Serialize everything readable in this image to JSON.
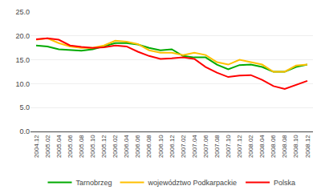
{
  "chart_data": {
    "type": "line",
    "categories": [
      "2004.12",
      "2005.02",
      "2005.04",
      "2005.06",
      "2005.08",
      "2005.10",
      "2005.12",
      "2006.02",
      "2006.04",
      "2006.06",
      "2006.08",
      "2006.10",
      "2006.12",
      "2007.02",
      "2007.04",
      "2007.06",
      "2007.08",
      "2007.10",
      "2007.12",
      "2008.02",
      "2008.04",
      "2008.06",
      "2008.08",
      "2008.10",
      "2008.12"
    ],
    "series": [
      {
        "name": "Tarnobrzeg",
        "color": "#00AA00",
        "values": [
          18.0,
          17.8,
          17.2,
          17.0,
          16.9,
          17.2,
          17.8,
          18.5,
          18.5,
          18.2,
          17.5,
          17.0,
          17.2,
          15.8,
          15.5,
          15.5,
          14.0,
          13.0,
          13.9,
          14.0,
          13.5,
          12.5,
          12.5,
          13.5,
          14.0
        ]
      },
      {
        "name": "województwo Podkarpackie",
        "color": "#FFC000",
        "values": [
          19.2,
          19.5,
          18.5,
          17.8,
          17.5,
          17.5,
          18.0,
          19.0,
          18.8,
          18.3,
          17.0,
          16.5,
          16.5,
          16.0,
          16.5,
          16.0,
          14.5,
          14.0,
          15.0,
          14.5,
          14.0,
          12.5,
          12.5,
          13.8,
          14.0
        ]
      },
      {
        "name": "Polska",
        "color": "#FF0000",
        "values": [
          19.3,
          19.5,
          19.2,
          18.0,
          17.7,
          17.5,
          17.6,
          18.0,
          17.8,
          16.7,
          15.8,
          15.2,
          15.3,
          15.5,
          15.2,
          13.5,
          12.3,
          11.4,
          11.7,
          11.8,
          10.8,
          9.5,
          8.9,
          9.8,
          10.6
        ]
      }
    ],
    "ylim": [
      0,
      25
    ],
    "yticks": [
      {
        "value": 0,
        "label": "0.0"
      },
      {
        "value": 5,
        "label": "5.0"
      },
      {
        "value": 10,
        "label": "10.0"
      },
      {
        "value": 15,
        "label": "15.0"
      },
      {
        "value": 20,
        "label": "20.0"
      },
      {
        "value": 25,
        "label": "25.0"
      }
    ],
    "grid": true,
    "legend": "bottom"
  }
}
